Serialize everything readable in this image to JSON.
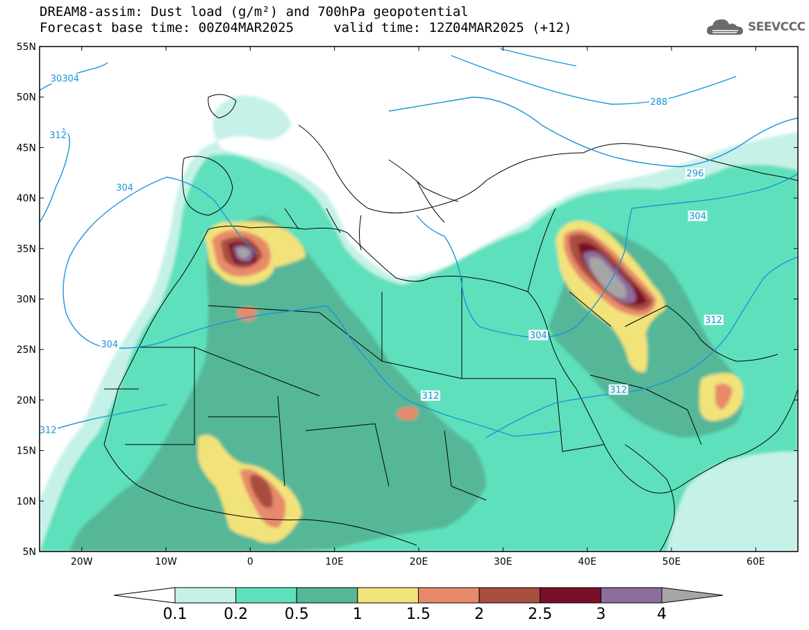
{
  "title": {
    "line1": "DREAM8-assim: Dust load (g/m²) and 700hPa geopotential",
    "line2": "Forecast base time: 00Z04MAR2025     valid time: 12Z04MAR2025 (+12)"
  },
  "logo": {
    "text": "SEEVCCC",
    "icon": "cloud-icon"
  },
  "map": {
    "lon_range": [
      -25,
      65
    ],
    "lat_range": [
      5,
      55
    ],
    "lon_ticks": [
      {
        "value": -20,
        "label": "20W"
      },
      {
        "value": -10,
        "label": "10W"
      },
      {
        "value": 0,
        "label": "0"
      },
      {
        "value": 10,
        "label": "10E"
      },
      {
        "value": 20,
        "label": "20E"
      },
      {
        "value": 30,
        "label": "30E"
      },
      {
        "value": 40,
        "label": "40E"
      },
      {
        "value": 50,
        "label": "50E"
      },
      {
        "value": 60,
        "label": "60E"
      }
    ],
    "lat_ticks": [
      {
        "value": 55,
        "label": "55N"
      },
      {
        "value": 50,
        "label": "50N"
      },
      {
        "value": 45,
        "label": "45N"
      },
      {
        "value": 40,
        "label": "40N"
      },
      {
        "value": 35,
        "label": "35N"
      },
      {
        "value": 30,
        "label": "30N"
      },
      {
        "value": 25,
        "label": "25N"
      },
      {
        "value": 20,
        "label": "20N"
      },
      {
        "value": 15,
        "label": "15N"
      },
      {
        "value": 10,
        "label": "10N"
      },
      {
        "value": 5,
        "label": "5N"
      }
    ],
    "contour_color": "#1a95d9",
    "contour_labels": [
      {
        "text": "30304",
        "lon": -22.0,
        "lat": 51.8
      },
      {
        "text": "312",
        "lon": -22.8,
        "lat": 46.2
      },
      {
        "text": "304",
        "lon": -14.9,
        "lat": 41.0
      },
      {
        "text": "304",
        "lon": -16.7,
        "lat": 25.5
      },
      {
        "text": "312",
        "lon": -24.0,
        "lat": 17.0
      },
      {
        "text": "312",
        "lon": 21.4,
        "lat": 20.4
      },
      {
        "text": "304",
        "lon": 34.2,
        "lat": 26.4
      },
      {
        "text": "312",
        "lon": 43.7,
        "lat": 21.0
      },
      {
        "text": "312",
        "lon": 55.0,
        "lat": 27.9
      },
      {
        "text": "288",
        "lon": 48.5,
        "lat": 49.5
      },
      {
        "text": "296",
        "lon": 52.8,
        "lat": 42.4
      },
      {
        "text": "304",
        "lon": 53.1,
        "lat": 38.2
      }
    ]
  },
  "colorbar": {
    "levels": [
      "0.1",
      "0.2",
      "0.5",
      "1",
      "1.5",
      "2",
      "2.5",
      "3",
      "4"
    ],
    "colors": [
      "#c6f1e8",
      "#5ee0bc",
      "#55b797",
      "#f2e27a",
      "#e78a6a",
      "#a84e3f",
      "#7a0f2a",
      "#8c6d9c",
      "#a6a6a6"
    ]
  }
}
